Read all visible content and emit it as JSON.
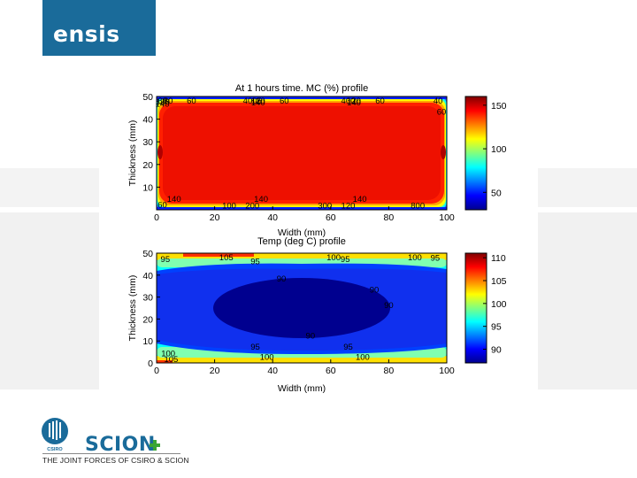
{
  "brand": {
    "logo_text": "ensis",
    "csiro_label": "CSIRO",
    "scion_label": "SCION",
    "tagline": "THE JOINT FORCES OF CSIRO & SCION",
    "logo_color": "#1a6b9a",
    "scion_color": "#1a6b9a",
    "plus_color": "#3aa535"
  },
  "chart_data": [
    {
      "type": "heatmap",
      "title": "At 1 hours time. MC (%) profile",
      "xlabel": "Width (mm)",
      "ylabel": "Thickness (mm)",
      "xlim": [
        0,
        100
      ],
      "ylim": [
        0,
        50
      ],
      "x_ticks": [
        0,
        20,
        40,
        60,
        80,
        100
      ],
      "y_ticks": [
        10,
        20,
        30,
        40,
        50
      ],
      "colorbar": {
        "min": 30,
        "max": 160,
        "ticks": [
          50,
          100,
          150
        ]
      },
      "contour_labels": [
        {
          "text": "60",
          "x": 2,
          "y": 49
        },
        {
          "text": "80",
          "x": 4,
          "y": 47.5
        },
        {
          "text": "120",
          "x": 2,
          "y": 46.5
        },
        {
          "text": "140",
          "x": 2,
          "y": 45.5
        },
        {
          "text": "60",
          "x": 12,
          "y": 48.5
        },
        {
          "text": "4005",
          "x": 33,
          "y": 49
        },
        {
          "text": "120",
          "x": 35,
          "y": 47.5
        },
        {
          "text": "140",
          "x": 35,
          "y": 46
        },
        {
          "text": "60",
          "x": 44,
          "y": 48.5
        },
        {
          "text": "400",
          "x": 66,
          "y": 49
        },
        {
          "text": "120",
          "x": 68,
          "y": 47.5
        },
        {
          "text": "140",
          "x": 68,
          "y": 46
        },
        {
          "text": "60",
          "x": 77,
          "y": 48.5
        },
        {
          "text": "40",
          "x": 97,
          "y": 49
        },
        {
          "text": "60",
          "x": 99,
          "y": 42
        },
        {
          "text": "140",
          "x": 6,
          "y": 3.5
        },
        {
          "text": "60",
          "x": 2,
          "y": 1
        },
        {
          "text": "100",
          "x": 25,
          "y": 0.6
        },
        {
          "text": "200",
          "x": 33,
          "y": 0.6
        },
        {
          "text": "140",
          "x": 36,
          "y": 3.5
        },
        {
          "text": "300",
          "x": 58,
          "y": 0.6
        },
        {
          "text": "120",
          "x": 66,
          "y": 0.6
        },
        {
          "text": "140",
          "x": 70,
          "y": 3.5
        },
        {
          "text": "800",
          "x": 90,
          "y": 0.6
        }
      ]
    },
    {
      "type": "heatmap",
      "title": "Temp (deg C) profile",
      "xlabel": "Width (mm)",
      "ylabel": "Thickness (mm)",
      "xlim": [
        0,
        100
      ],
      "ylim": [
        0,
        50
      ],
      "x_ticks": [
        0,
        20,
        40,
        60,
        80,
        100
      ],
      "y_ticks": [
        0,
        10,
        20,
        30,
        40,
        50
      ],
      "colorbar": {
        "min": 87,
        "max": 111,
        "ticks": [
          90,
          95,
          100,
          105,
          110
        ]
      },
      "contour_labels": [
        {
          "text": "105",
          "x": 24,
          "y": 48
        },
        {
          "text": "100",
          "x": 61,
          "y": 48.5
        },
        {
          "text": "100",
          "x": 89,
          "y": 48.5
        },
        {
          "text": "95",
          "x": 3,
          "y": 46
        },
        {
          "text": "95",
          "x": 34,
          "y": 45
        },
        {
          "text": "95",
          "x": 65,
          "y": 46
        },
        {
          "text": "95",
          "x": 96,
          "y": 46.5
        },
        {
          "text": "90",
          "x": 43,
          "y": 37
        },
        {
          "text": "90",
          "x": 75,
          "y": 32
        },
        {
          "text": "90",
          "x": 80,
          "y": 25
        },
        {
          "text": "90",
          "x": 53,
          "y": 11
        },
        {
          "text": "95",
          "x": 34,
          "y": 6
        },
        {
          "text": "95",
          "x": 66,
          "y": 6
        },
        {
          "text": "100",
          "x": 4,
          "y": 3
        },
        {
          "text": "105",
          "x": 5,
          "y": -0.5
        },
        {
          "text": "100",
          "x": 38,
          "y": 1.5
        },
        {
          "text": "100",
          "x": 71,
          "y": 1.5
        }
      ]
    }
  ]
}
